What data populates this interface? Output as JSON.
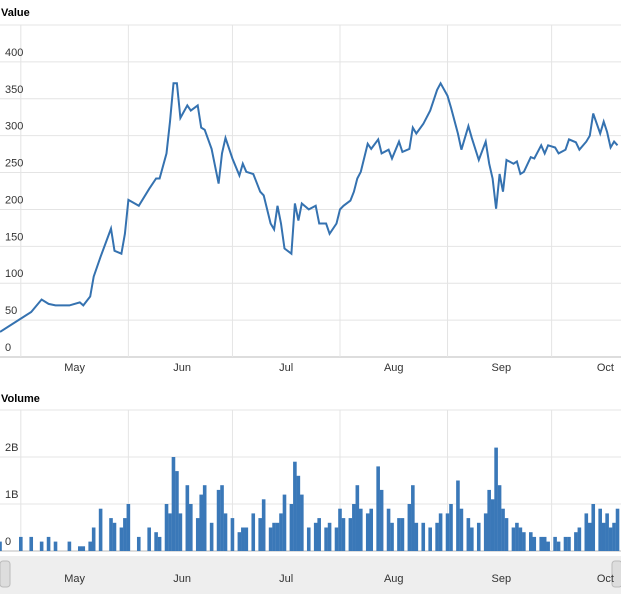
{
  "chart_data": [
    {
      "type": "line",
      "title": "Value",
      "color": "#3572b0",
      "grid": true,
      "x": [
        0,
        6,
        9,
        12,
        14,
        16,
        20,
        23,
        24,
        26,
        27,
        29,
        32,
        33,
        35,
        36,
        37,
        40,
        43,
        45,
        46,
        48,
        49,
        50,
        51,
        52,
        54,
        55,
        57,
        58,
        59,
        61,
        63,
        64,
        65,
        67,
        69,
        70,
        71,
        73,
        75,
        76,
        78,
        79,
        80,
        81,
        82,
        84,
        85,
        86,
        87,
        89,
        91,
        92,
        94,
        95,
        97,
        98,
        99,
        101,
        102,
        103,
        104,
        106,
        107,
        109,
        110,
        112,
        113,
        115,
        116,
        118,
        119,
        120,
        122,
        124,
        126,
        127,
        129,
        130,
        132,
        133,
        135,
        136,
        138,
        140,
        141,
        142,
        143,
        144,
        145,
        146,
        148,
        149,
        150,
        151,
        153,
        154,
        156,
        157,
        158,
        160,
        161,
        163,
        164,
        166,
        167,
        169,
        170,
        171,
        173,
        174,
        175,
        176,
        177,
        178
      ],
      "values": [
        34,
        52,
        61,
        78,
        72,
        70,
        70,
        74,
        70,
        82,
        109,
        136,
        174,
        144,
        140,
        167,
        213,
        205,
        228,
        242,
        242,
        276,
        319,
        371,
        371,
        324,
        341,
        334,
        341,
        311,
        308,
        282,
        235,
        276,
        297,
        269,
        246,
        262,
        251,
        248,
        224,
        219,
        181,
        173,
        205,
        181,
        147,
        140,
        208,
        185,
        208,
        200,
        205,
        181,
        181,
        167,
        181,
        200,
        205,
        212,
        224,
        242,
        251,
        289,
        282,
        295,
        276,
        281,
        269,
        292,
        278,
        282,
        311,
        303,
        316,
        334,
        362,
        371,
        354,
        338,
        303,
        281,
        313,
        297,
        267,
        292,
        262,
        242,
        201,
        248,
        224,
        267,
        262,
        265,
        248,
        251,
        271,
        269,
        287,
        276,
        287,
        284,
        276,
        281,
        295,
        291,
        281,
        292,
        300,
        330,
        303,
        319,
        305,
        284,
        292,
        287
      ],
      "xlim": [
        0,
        179
      ],
      "xticks": [
        {
          "value": 6,
          "label": "May"
        },
        {
          "value": 37,
          "label": "Jun"
        },
        {
          "value": 67,
          "label": "Jul"
        },
        {
          "value": 98,
          "label": "Aug"
        },
        {
          "value": 129,
          "label": "Sep"
        },
        {
          "value": 159,
          "label": "Oct"
        }
      ],
      "ylim": [
        0,
        450
      ],
      "yticks": [
        0,
        50,
        100,
        150,
        200,
        250,
        300,
        350,
        400
      ]
    },
    {
      "type": "bar",
      "title": "Volume",
      "color": "#3a78b8",
      "grid": true,
      "x": [
        0,
        6,
        9,
        12,
        14,
        16,
        20,
        23,
        24,
        26,
        27,
        29,
        32,
        33,
        35,
        36,
        37,
        40,
        43,
        45,
        46,
        48,
        49,
        50,
        51,
        52,
        54,
        55,
        57,
        58,
        59,
        61,
        63,
        64,
        65,
        67,
        69,
        70,
        71,
        73,
        75,
        76,
        78,
        79,
        80,
        81,
        82,
        84,
        85,
        86,
        87,
        89,
        91,
        92,
        94,
        95,
        97,
        98,
        99,
        101,
        102,
        103,
        104,
        106,
        107,
        109,
        110,
        112,
        113,
        115,
        116,
        118,
        119,
        120,
        122,
        124,
        126,
        127,
        129,
        130,
        132,
        133,
        135,
        136,
        138,
        140,
        141,
        142,
        143,
        144,
        145,
        146,
        148,
        149,
        150,
        151,
        153,
        154,
        156,
        157,
        158,
        160,
        161,
        163,
        164,
        166,
        167,
        169,
        170,
        171,
        173,
        174,
        175,
        176,
        177,
        178
      ],
      "values": [
        200000000,
        300000000,
        300000000,
        200000000,
        300000000,
        200000000,
        200000000,
        100000000,
        100000000,
        200000000,
        500000000,
        900000000,
        700000000,
        600000000,
        500000000,
        700000000,
        1000000000,
        300000000,
        500000000,
        400000000,
        300000000,
        1000000000,
        800000000,
        2000000000,
        1700000000,
        800000000,
        1400000000,
        1000000000,
        700000000,
        1200000000,
        1400000000,
        600000000,
        1300000000,
        1400000000,
        800000000,
        700000000,
        400000000,
        500000000,
        500000000,
        800000000,
        700000000,
        1100000000,
        500000000,
        600000000,
        600000000,
        800000000,
        1200000000,
        1000000000,
        1900000000,
        1600000000,
        1200000000,
        500000000,
        600000000,
        700000000,
        500000000,
        600000000,
        500000000,
        900000000,
        700000000,
        700000000,
        1000000000,
        1400000000,
        900000000,
        800000000,
        900000000,
        1800000000,
        1300000000,
        900000000,
        600000000,
        700000000,
        700000000,
        1000000000,
        1400000000,
        600000000,
        600000000,
        500000000,
        600000000,
        800000000,
        800000000,
        1000000000,
        1500000000,
        900000000,
        700000000,
        500000000,
        600000000,
        800000000,
        1300000000,
        1100000000,
        2200000000,
        1400000000,
        900000000,
        700000000,
        500000000,
        600000000,
        500000000,
        400000000,
        400000000,
        300000000,
        300000000,
        300000000,
        200000000,
        300000000,
        200000000,
        300000000,
        300000000,
        400000000,
        500000000,
        800000000,
        600000000,
        1000000000,
        900000000,
        600000000,
        800000000,
        500000000,
        600000000,
        900000000
      ],
      "xlim": [
        0,
        179
      ],
      "xticks": [
        {
          "value": 6,
          "label": "May"
        },
        {
          "value": 37,
          "label": "Jun"
        },
        {
          "value": 67,
          "label": "Jul"
        },
        {
          "value": 98,
          "label": "Aug"
        },
        {
          "value": 129,
          "label": "Sep"
        },
        {
          "value": 159,
          "label": "Oct"
        }
      ],
      "ylim": [
        0,
        3000000000
      ],
      "yticks": [
        0,
        {
          "value": 1000000000,
          "label": "1B"
        },
        {
          "value": 2000000000,
          "label": "2B"
        }
      ]
    }
  ]
}
